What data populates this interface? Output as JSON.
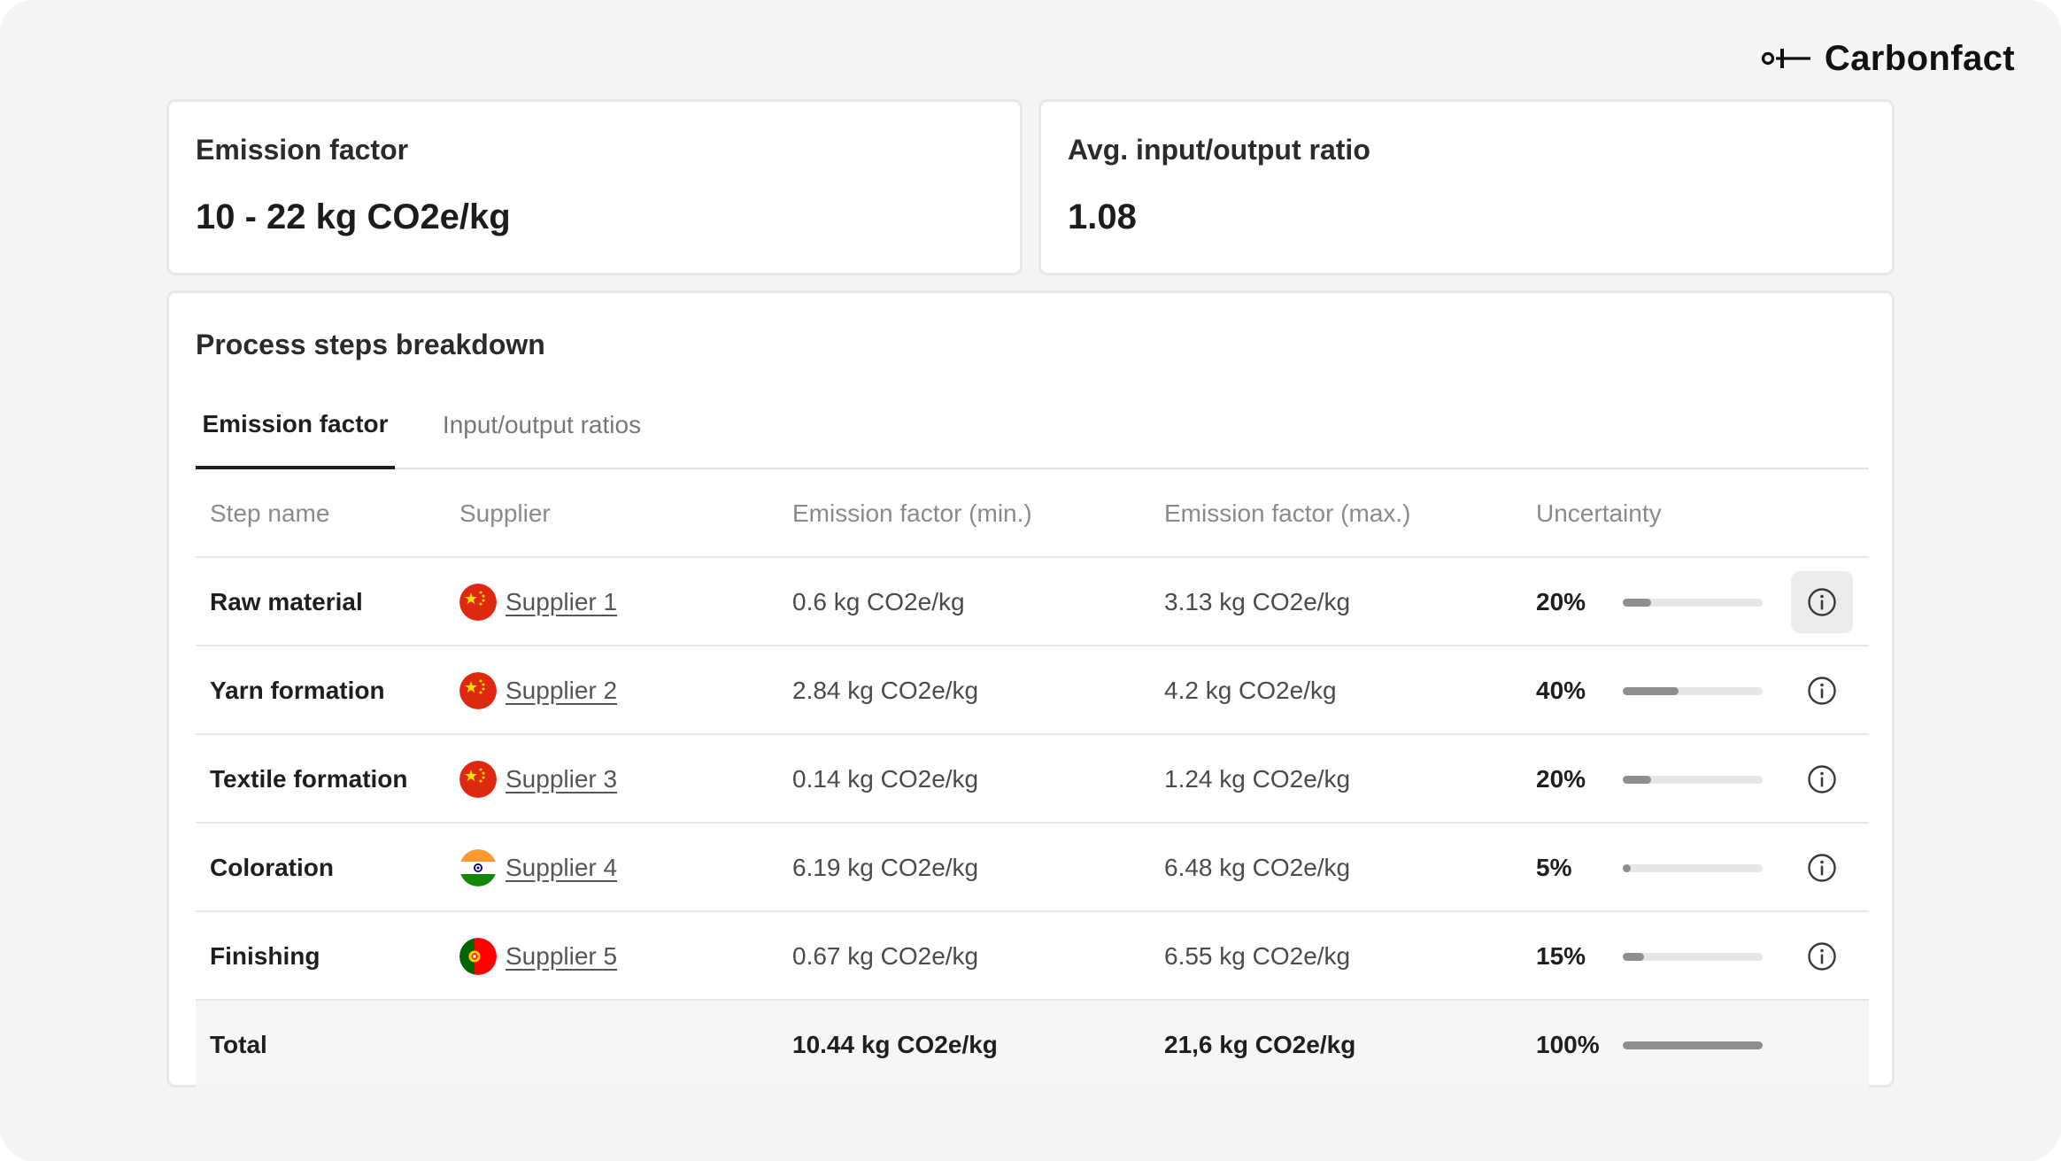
{
  "brand": {
    "name": "Carbonfact",
    "logo_icon": "carbonfact-logo-icon"
  },
  "summary": {
    "emission_factor": {
      "label": "Emission factor",
      "value": "10 - 22 kg CO2e/kg"
    },
    "ratio": {
      "label": "Avg. input/output ratio",
      "value": "1.08"
    }
  },
  "process": {
    "title": "Process steps breakdown",
    "tabs": [
      {
        "label": "Emission factor",
        "active": true
      },
      {
        "label": "Input/output ratios",
        "active": false
      }
    ],
    "columns": [
      "Step name",
      "Supplier",
      "Emission factor (min.)",
      "Emission factor (max.)",
      "Uncertainty"
    ],
    "rows": [
      {
        "step": "Raw material",
        "supplier": "Supplier 1",
        "flag": "china-flag-icon",
        "min": "0.6 kg CO2e/kg",
        "max": "3.13 kg CO2e/kg",
        "uncertainty": "20%",
        "uncertainty_fraction": 0.2
      },
      {
        "step": "Yarn formation",
        "supplier": "Supplier 2",
        "flag": "china-flag-icon",
        "min": "2.84 kg CO2e/kg",
        "max": "4.2 kg CO2e/kg",
        "uncertainty": "40%",
        "uncertainty_fraction": 0.4
      },
      {
        "step": "Textile formation",
        "supplier": "Supplier 3",
        "flag": "china-flag-icon",
        "min": "0.14 kg CO2e/kg",
        "max": "1.24 kg CO2e/kg",
        "uncertainty": "20%",
        "uncertainty_fraction": 0.2
      },
      {
        "step": "Coloration",
        "supplier": "Supplier 4",
        "flag": "india-flag-icon",
        "min": "6.19 kg CO2e/kg",
        "max": "6.48 kg CO2e/kg",
        "uncertainty": "5%",
        "uncertainty_fraction": 0.05
      },
      {
        "step": "Finishing",
        "supplier": "Supplier 5",
        "flag": "portugal-flag-icon",
        "min": "0.67 kg CO2e/kg",
        "max": "6.55 kg CO2e/kg",
        "uncertainty": "15%",
        "uncertainty_fraction": 0.15
      }
    ],
    "total": {
      "label": "Total",
      "min": "10.44 kg CO2e/kg",
      "max": "21,6 kg CO2e/kg",
      "uncertainty": "100%",
      "uncertainty_fraction": 1.0
    }
  },
  "colors": {
    "bar_fill": "#8e8e8e",
    "bar_track": "#e6e6e6",
    "china_red": "#de2910",
    "china_yellow": "#ffde00"
  }
}
